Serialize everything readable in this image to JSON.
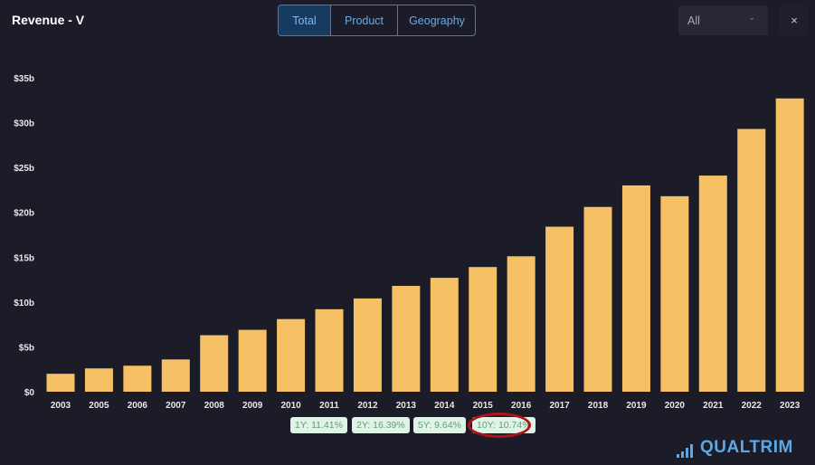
{
  "header": {
    "title": "Revenue - V",
    "tabs": [
      "Total",
      "Product",
      "Geography"
    ],
    "active_tab": "Total",
    "select_value": "All",
    "close_label": "×"
  },
  "chart_data": {
    "type": "bar",
    "categories": [
      "2003",
      "2005",
      "2006",
      "2007",
      "2008",
      "2009",
      "2010",
      "2011",
      "2012",
      "2013",
      "2014",
      "2015",
      "2016",
      "2017",
      "2018",
      "2019",
      "2020",
      "2021",
      "2022",
      "2023"
    ],
    "values": [
      2.0,
      2.6,
      2.9,
      3.6,
      6.3,
      6.9,
      8.1,
      9.2,
      10.4,
      11.8,
      12.7,
      13.9,
      15.1,
      18.4,
      20.6,
      23.0,
      21.8,
      24.1,
      29.3,
      32.7
    ],
    "unit": "$b",
    "yticks": [
      "$0",
      "$5b",
      "$10b",
      "$15b",
      "$20b",
      "$25b",
      "$30b",
      "$35b"
    ],
    "ylim": [
      0,
      35
    ],
    "bar_color": "#f6c164",
    "grid": false
  },
  "growth": [
    {
      "label": "1Y: 11.41%"
    },
    {
      "label": "2Y: 16.39%"
    },
    {
      "label": "5Y: 9.64%"
    },
    {
      "label": "10Y: 10.74%",
      "highlighted": true
    }
  ],
  "logo": "QUALTRIM"
}
